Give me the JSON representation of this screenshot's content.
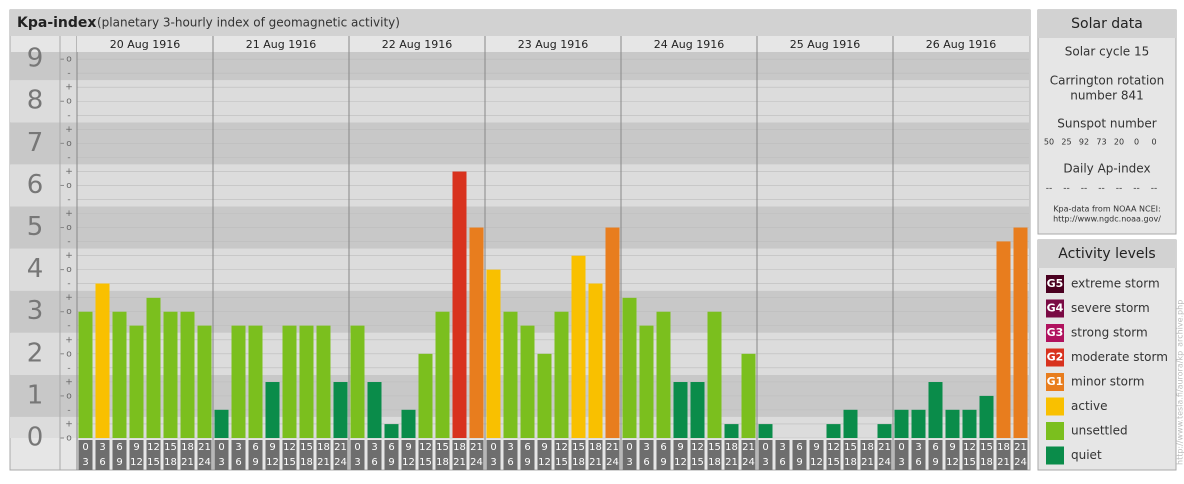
{
  "chart_data": {
    "type": "bar",
    "title": "Kpa-index",
    "subtitle": "(planetary 3-hourly index of geomagnetic activity)",
    "days": [
      "20 Aug 1916",
      "21 Aug 1916",
      "22 Aug 1916",
      "23 Aug 1916",
      "24 Aug 1916",
      "25 Aug 1916",
      "26 Aug 1916"
    ],
    "hour_labels": [
      {
        "top": "0",
        "bottom": "3"
      },
      {
        "top": "3",
        "bottom": "6"
      },
      {
        "top": "6",
        "bottom": "9"
      },
      {
        "top": "9",
        "bottom": "12"
      },
      {
        "top": "12",
        "bottom": "15"
      },
      {
        "top": "15",
        "bottom": "18"
      },
      {
        "top": "18",
        "bottom": "21"
      },
      {
        "top": "21",
        "bottom": "24"
      }
    ],
    "ylim": [
      0,
      9.17
    ],
    "yticks": [
      0,
      1,
      2,
      3,
      4,
      5,
      6,
      7,
      8,
      9
    ],
    "minor_labels": [
      "o",
      "+",
      "-"
    ],
    "values": [
      3,
      3.67,
      3,
      2.67,
      3.33,
      3,
      3,
      2.67,
      0.67,
      2.67,
      2.67,
      1.33,
      2.67,
      2.67,
      2.67,
      1.33,
      2.67,
      1.33,
      0.33,
      0.67,
      2,
      3,
      6.33,
      5,
      4,
      3,
      2.67,
      2,
      3,
      4.33,
      3.67,
      5,
      3.33,
      2.67,
      3,
      1.33,
      1.33,
      3,
      0.33,
      2,
      0.33,
      0,
      0,
      0,
      0.33,
      0.67,
      0,
      0.33,
      0.67,
      0.67,
      1.33,
      0.67,
      0.67,
      1,
      4.67,
      5
    ],
    "colors": [
      "#7bbf1e",
      "#f9c000",
      "#7bbf1e",
      "#7bbf1e",
      "#7bbf1e",
      "#7bbf1e",
      "#7bbf1e",
      "#7bbf1e",
      "#0a8c4a",
      "#7bbf1e",
      "#7bbf1e",
      "#0a8c4a",
      "#7bbf1e",
      "#7bbf1e",
      "#7bbf1e",
      "#0a8c4a",
      "#7bbf1e",
      "#0a8c4a",
      "#0a8c4a",
      "#0a8c4a",
      "#7bbf1e",
      "#7bbf1e",
      "#d8321e",
      "#e87d1e",
      "#f9c000",
      "#7bbf1e",
      "#7bbf1e",
      "#7bbf1e",
      "#7bbf1e",
      "#f9c000",
      "#f9c000",
      "#e87d1e",
      "#7bbf1e",
      "#7bbf1e",
      "#7bbf1e",
      "#0a8c4a",
      "#0a8c4a",
      "#7bbf1e",
      "#0a8c4a",
      "#7bbf1e",
      "#0a8c4a",
      "#0a8c4a",
      "#0a8c4a",
      "#0a8c4a",
      "#0a8c4a",
      "#0a8c4a",
      "#0a8c4a",
      "#0a8c4a",
      "#0a8c4a",
      "#0a8c4a",
      "#0a8c4a",
      "#0a8c4a",
      "#0a8c4a",
      "#0a8c4a",
      "#e87d1e",
      "#e87d1e"
    ]
  },
  "solar_data": {
    "title": "Solar data",
    "cycle": "Solar cycle 15",
    "carrington": [
      "Carrington rotation",
      "number 841"
    ],
    "sunspot_title": "Sunspot number",
    "sunspots": [
      50,
      25,
      92,
      73,
      20,
      0,
      0
    ],
    "ap_title": "Daily Ap-index",
    "ap": [
      "--",
      "--",
      "--",
      "--",
      "--",
      "--",
      "--"
    ],
    "source": [
      "Kpa-data from NOAA NCEI:",
      "http://www.ngdc.noaa.gov/"
    ]
  },
  "activity_levels": {
    "title": "Activity levels",
    "levels": [
      {
        "code": "G5",
        "name": "extreme storm",
        "color": "#4a0020"
      },
      {
        "code": "G4",
        "name": "severe storm",
        "color": "#7a0a44"
      },
      {
        "code": "G3",
        "name": "strong storm",
        "color": "#b0125e"
      },
      {
        "code": "G2",
        "name": "moderate storm",
        "color": "#d8321e"
      },
      {
        "code": "G1",
        "name": "minor storm",
        "color": "#e87d1e"
      },
      {
        "name": "active",
        "color": "#f9c000"
      },
      {
        "name": "unsettled",
        "color": "#7bbf1e"
      },
      {
        "name": "quiet",
        "color": "#0a8c4a"
      }
    ]
  },
  "watermark": "http://www.tesla.fi/aurora/kp_archive.php"
}
